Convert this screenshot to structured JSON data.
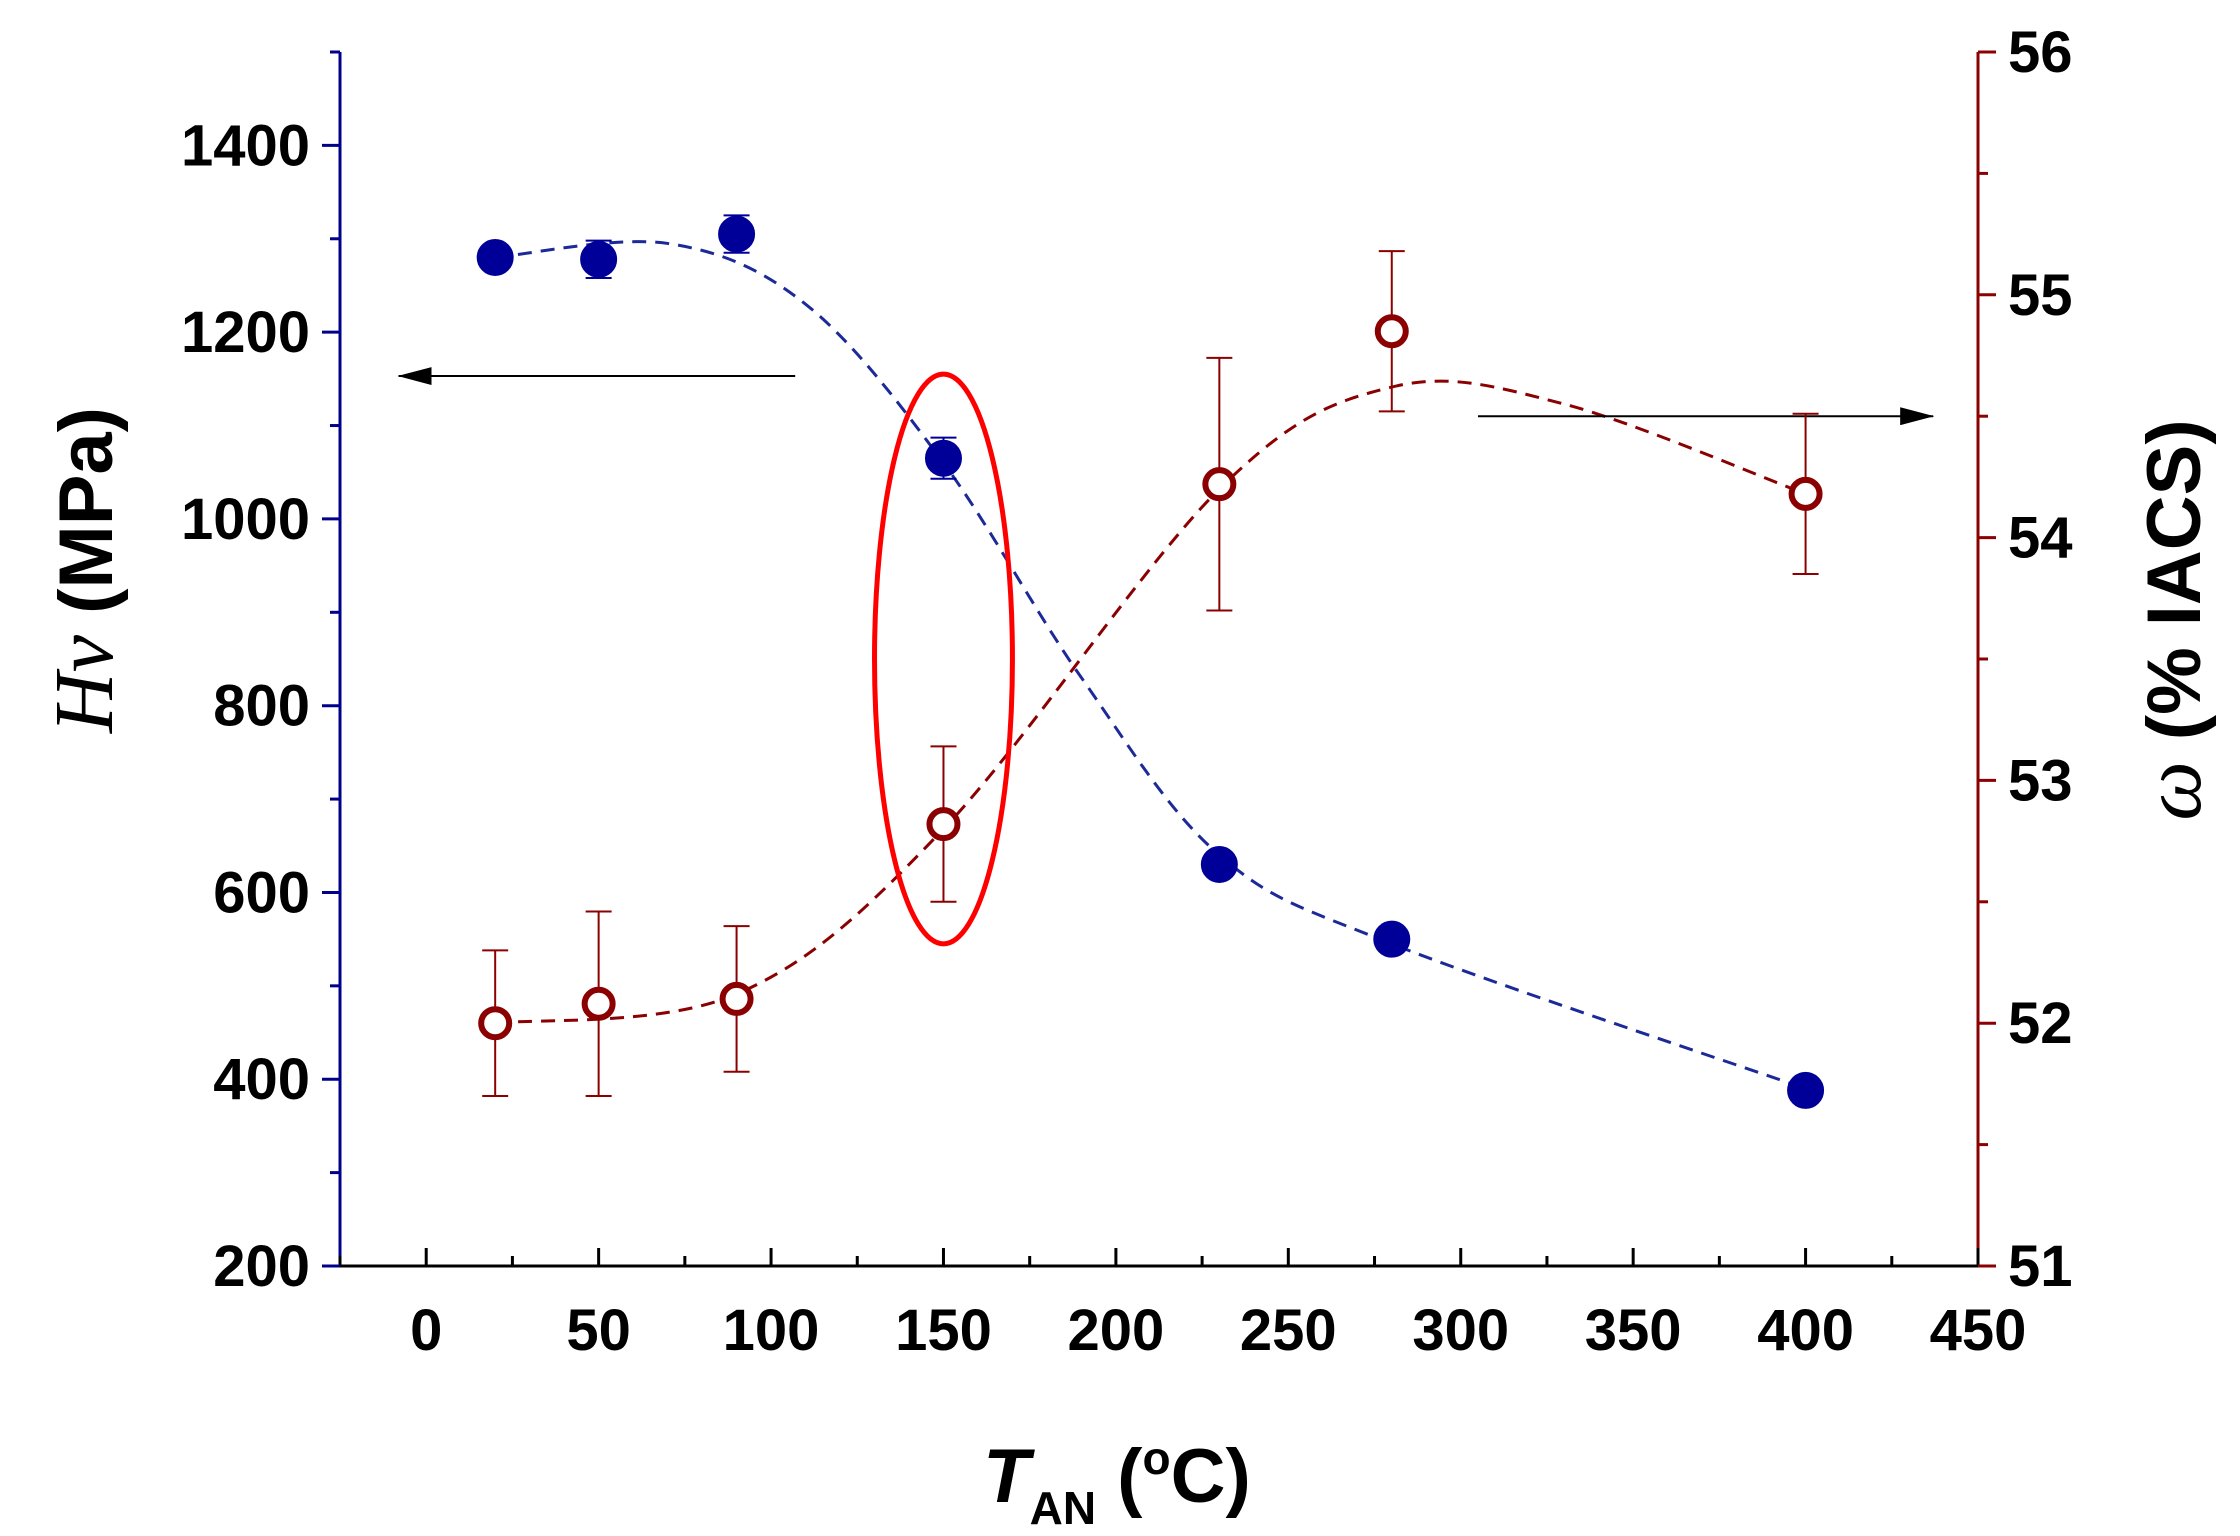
{
  "chart_data": {
    "type": "scatter",
    "x": [
      20,
      50,
      90,
      150,
      230,
      280,
      400
    ],
    "xlabel_main": "T",
    "xlabel_sub": "AN",
    "xlabel_unit_open": " (",
    "xlabel_unit_sup": "o",
    "xlabel_unit_close": "C)",
    "xlim": [
      -25,
      450
    ],
    "xticks": [
      "0",
      "50",
      "100",
      "150",
      "200",
      "250",
      "300",
      "350",
      "400",
      "450"
    ],
    "xtick_values": [
      0,
      50,
      100,
      150,
      200,
      250,
      300,
      350,
      400,
      450
    ],
    "ylabel_left_symbol": "Hv",
    "ylabel_left_unit": " (MPa)",
    "ylim_left": [
      200,
      1500
    ],
    "yticks_left": [
      "200",
      "400",
      "600",
      "800",
      "1000",
      "1200",
      "1400"
    ],
    "ytick_values_left": [
      200,
      400,
      600,
      800,
      1000,
      1200,
      1400
    ],
    "ylabel_right_symbol": "ω",
    "ylabel_right_unit": " (% IACS)",
    "ylim_right": [
      51,
      56
    ],
    "yticks_right": [
      "51",
      "52",
      "53",
      "54",
      "55",
      "56"
    ],
    "ytick_values_right": [
      51,
      52,
      53,
      54,
      55,
      56
    ],
    "series": [
      {
        "name": "Hv",
        "axis": "left",
        "marker": "filled-circle",
        "values": [
          1280,
          1278,
          1305,
          1065,
          630,
          550,
          388
        ],
        "errors": [
          0,
          20,
          20,
          22,
          0,
          0,
          0
        ],
        "trend": [
          [
            20,
            1280
          ],
          [
            70,
            1295
          ],
          [
            110,
            1230
          ],
          [
            150,
            1060
          ],
          [
            190,
            830
          ],
          [
            230,
            640
          ],
          [
            280,
            545
          ],
          [
            400,
            390
          ]
        ]
      },
      {
        "name": "ω",
        "axis": "right",
        "marker": "open-circle",
        "values": [
          52.0,
          52.08,
          52.1,
          52.82,
          54.22,
          54.85,
          54.18
        ],
        "errors": [
          0.3,
          0.38,
          0.3,
          0.32,
          0.52,
          0.33,
          0.33
        ],
        "trend": [
          [
            20,
            52.0
          ],
          [
            90,
            52.12
          ],
          [
            150,
            52.8
          ],
          [
            230,
            54.2
          ],
          [
            280,
            54.62
          ],
          [
            330,
            54.55
          ],
          [
            400,
            54.18
          ]
        ]
      }
    ],
    "annotations": [
      {
        "type": "arrow",
        "direction": "left",
        "points_to": "left axis (Hv)",
        "from_x": 107,
        "to_x": -8,
        "y_left": 1153
      },
      {
        "type": "arrow",
        "direction": "right",
        "points_to": "right axis (ω)",
        "from_x": 305,
        "to_x": 437,
        "y_right": 54.5
      },
      {
        "type": "ellipse",
        "center_x": 150,
        "center_y_left": 850,
        "rx_data": 20,
        "ry_left": 305
      }
    ],
    "colors": {
      "left_axis": "#00008b",
      "right_axis": "#8b0000",
      "hv_marker": "#000099",
      "omega_marker": "#8b0000",
      "ellipse": "#ff0000"
    }
  }
}
